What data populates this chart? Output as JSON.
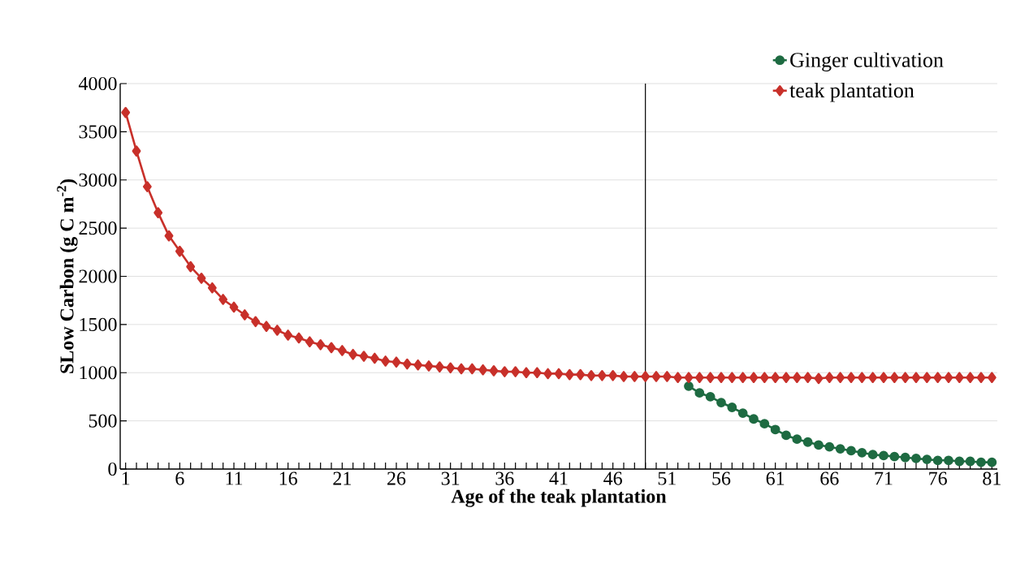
{
  "chart_data": {
    "type": "line",
    "xlabel": "Age of the teak plantation",
    "ylabel": "SLow Carbon (g C m$^{-2}$)",
    "x": [
      1,
      2,
      3,
      4,
      5,
      6,
      7,
      8,
      9,
      10,
      11,
      12,
      13,
      14,
      15,
      16,
      17,
      18,
      19,
      20,
      21,
      22,
      23,
      24,
      25,
      26,
      27,
      28,
      29,
      30,
      31,
      32,
      33,
      34,
      35,
      36,
      37,
      38,
      39,
      40,
      41,
      42,
      43,
      44,
      45,
      46,
      47,
      48,
      49,
      50,
      51,
      52,
      53,
      54,
      55,
      56,
      57,
      58,
      59,
      60,
      61,
      62,
      63,
      64,
      65,
      66,
      67,
      68,
      69,
      70,
      71,
      72,
      73,
      74,
      75,
      76,
      77,
      78,
      79,
      80,
      81
    ],
    "series": [
      {
        "name": "Ginger cultivation",
        "color": "#1e6b42",
        "marker": "circle",
        "values": [
          null,
          null,
          null,
          null,
          null,
          null,
          null,
          null,
          null,
          null,
          null,
          null,
          null,
          null,
          null,
          null,
          null,
          null,
          null,
          null,
          null,
          null,
          null,
          null,
          null,
          null,
          null,
          null,
          null,
          null,
          null,
          null,
          null,
          null,
          null,
          null,
          null,
          null,
          null,
          null,
          null,
          null,
          null,
          null,
          null,
          null,
          null,
          null,
          null,
          null,
          null,
          null,
          860,
          790,
          750,
          690,
          640,
          580,
          520,
          470,
          410,
          350,
          310,
          280,
          250,
          230,
          210,
          190,
          170,
          150,
          140,
          130,
          120,
          110,
          100,
          90,
          90,
          80,
          80,
          70,
          70
        ]
      },
      {
        "name": "teak plantation",
        "color": "#c8302a",
        "marker": "diamond",
        "values": [
          3700,
          3300,
          2930,
          2660,
          2420,
          2260,
          2100,
          1980,
          1880,
          1760,
          1680,
          1600,
          1530,
          1480,
          1440,
          1390,
          1360,
          1320,
          1290,
          1260,
          1230,
          1190,
          1170,
          1150,
          1120,
          1110,
          1090,
          1080,
          1070,
          1060,
          1050,
          1040,
          1040,
          1030,
          1020,
          1010,
          1010,
          1000,
          1000,
          990,
          990,
          980,
          980,
          970,
          970,
          970,
          960,
          960,
          960,
          960,
          960,
          950,
          950,
          950,
          950,
          950,
          950,
          950,
          950,
          950,
          950,
          950,
          950,
          950,
          940,
          950,
          950,
          950,
          950,
          950,
          950,
          950,
          950,
          950,
          950,
          950,
          950,
          950,
          950,
          950,
          950
        ]
      }
    ],
    "xlim": [
      0.5,
      81.5
    ],
    "xticks": [
      1,
      {
        "value": 2,
        "label": null
      },
      {
        "value": 3,
        "label": null
      },
      {
        "value": 4,
        "label": null
      },
      {
        "value": 5,
        "label": null
      },
      6,
      {
        "value": 7,
        "label": null
      },
      {
        "value": 8,
        "label": null
      },
      {
        "value": 9,
        "label": null
      },
      {
        "value": 10,
        "label": null
      },
      11,
      {
        "value": 12,
        "label": null
      },
      {
        "value": 13,
        "label": null
      },
      {
        "value": 14,
        "label": null
      },
      {
        "value": 15,
        "label": null
      },
      16,
      {
        "value": 17,
        "label": null
      },
      {
        "value": 18,
        "label": null
      },
      {
        "value": 19,
        "label": null
      },
      {
        "value": 20,
        "label": null
      },
      21,
      {
        "value": 22,
        "label": null
      },
      {
        "value": 23,
        "label": null
      },
      {
        "value": 24,
        "label": null
      },
      {
        "value": 25,
        "label": null
      },
      26,
      {
        "value": 27,
        "label": null
      },
      {
        "value": 28,
        "label": null
      },
      {
        "value": 29,
        "label": null
      },
      {
        "value": 30,
        "label": null
      },
      31,
      {
        "value": 32,
        "label": null
      },
      {
        "value": 33,
        "label": null
      },
      {
        "value": 34,
        "label": null
      },
      {
        "value": 35,
        "label": null
      },
      36,
      {
        "value": 37,
        "label": null
      },
      {
        "value": 38,
        "label": null
      },
      {
        "value": 39,
        "label": null
      },
      {
        "value": 40,
        "label": null
      },
      41,
      {
        "value": 42,
        "label": null
      },
      {
        "value": 43,
        "label": null
      },
      {
        "value": 44,
        "label": null
      },
      {
        "value": 45,
        "label": null
      },
      46,
      {
        "value": 47,
        "label": null
      },
      {
        "value": 48,
        "label": null
      },
      {
        "value": 49,
        "label": null
      },
      {
        "value": 50,
        "label": null
      },
      51,
      {
        "value": 52,
        "label": null
      },
      {
        "value": 53,
        "label": null
      },
      {
        "value": 54,
        "label": null
      },
      {
        "value": 55,
        "label": null
      },
      56,
      {
        "value": 57,
        "label": null
      },
      {
        "value": 58,
        "label": null
      },
      {
        "value": 59,
        "label": null
      },
      {
        "value": 60,
        "label": null
      },
      61,
      {
        "value": 62,
        "label": null
      },
      {
        "value": 63,
        "label": null
      },
      {
        "value": 64,
        "label": null
      },
      {
        "value": 65,
        "label": null
      },
      66,
      {
        "value": 67,
        "label": null
      },
      {
        "value": 68,
        "label": null
      },
      {
        "value": 69,
        "label": null
      },
      {
        "value": 70,
        "label": null
      },
      71,
      {
        "value": 72,
        "label": null
      },
      {
        "value": 73,
        "label": null
      },
      {
        "value": 74,
        "label": null
      },
      {
        "value": 75,
        "label": null
      },
      76,
      {
        "value": 77,
        "label": null
      },
      {
        "value": 78,
        "label": null
      },
      {
        "value": 79,
        "label": null
      },
      {
        "value": 80,
        "label": null
      },
      81
    ],
    "ylim": [
      0,
      4000
    ],
    "yticks": [
      0,
      500,
      1000,
      1500,
      2000,
      2500,
      3000,
      3500,
      4000
    ],
    "grid": "y",
    "legend": "top right",
    "line_style": "solid",
    "ref_lines": [
      {
        "axis": "x",
        "value": 49,
        "color": "#000000"
      }
    ]
  }
}
